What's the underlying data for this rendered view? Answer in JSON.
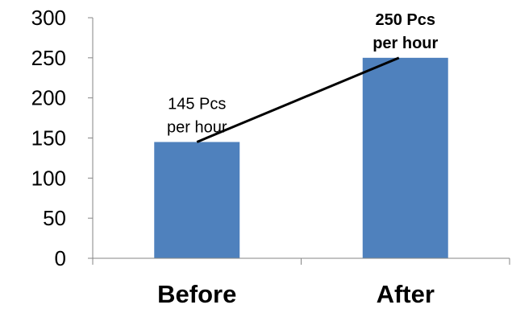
{
  "chart_data": {
    "type": "bar",
    "categories": [
      "Before",
      "After"
    ],
    "values": [
      145,
      250
    ],
    "ylim": [
      0,
      300
    ],
    "yticks": [
      0,
      50,
      100,
      150,
      200,
      250,
      300
    ],
    "ytick_labels": [
      "0",
      "50",
      "100",
      "150",
      "200",
      "250",
      "300"
    ],
    "grid": false,
    "bar_color": "#4F81BD",
    "annotations": [
      {
        "lines": [
          "145 Pcs",
          "per hour"
        ],
        "bold": false,
        "category": "Before"
      },
      {
        "lines": [
          "250 Pcs",
          "per hour"
        ],
        "bold": true,
        "category": "After"
      }
    ],
    "connector": {
      "from_category": "Before",
      "from_value": 145,
      "to_category": "After",
      "to_value": 250,
      "color": "#000000"
    }
  }
}
